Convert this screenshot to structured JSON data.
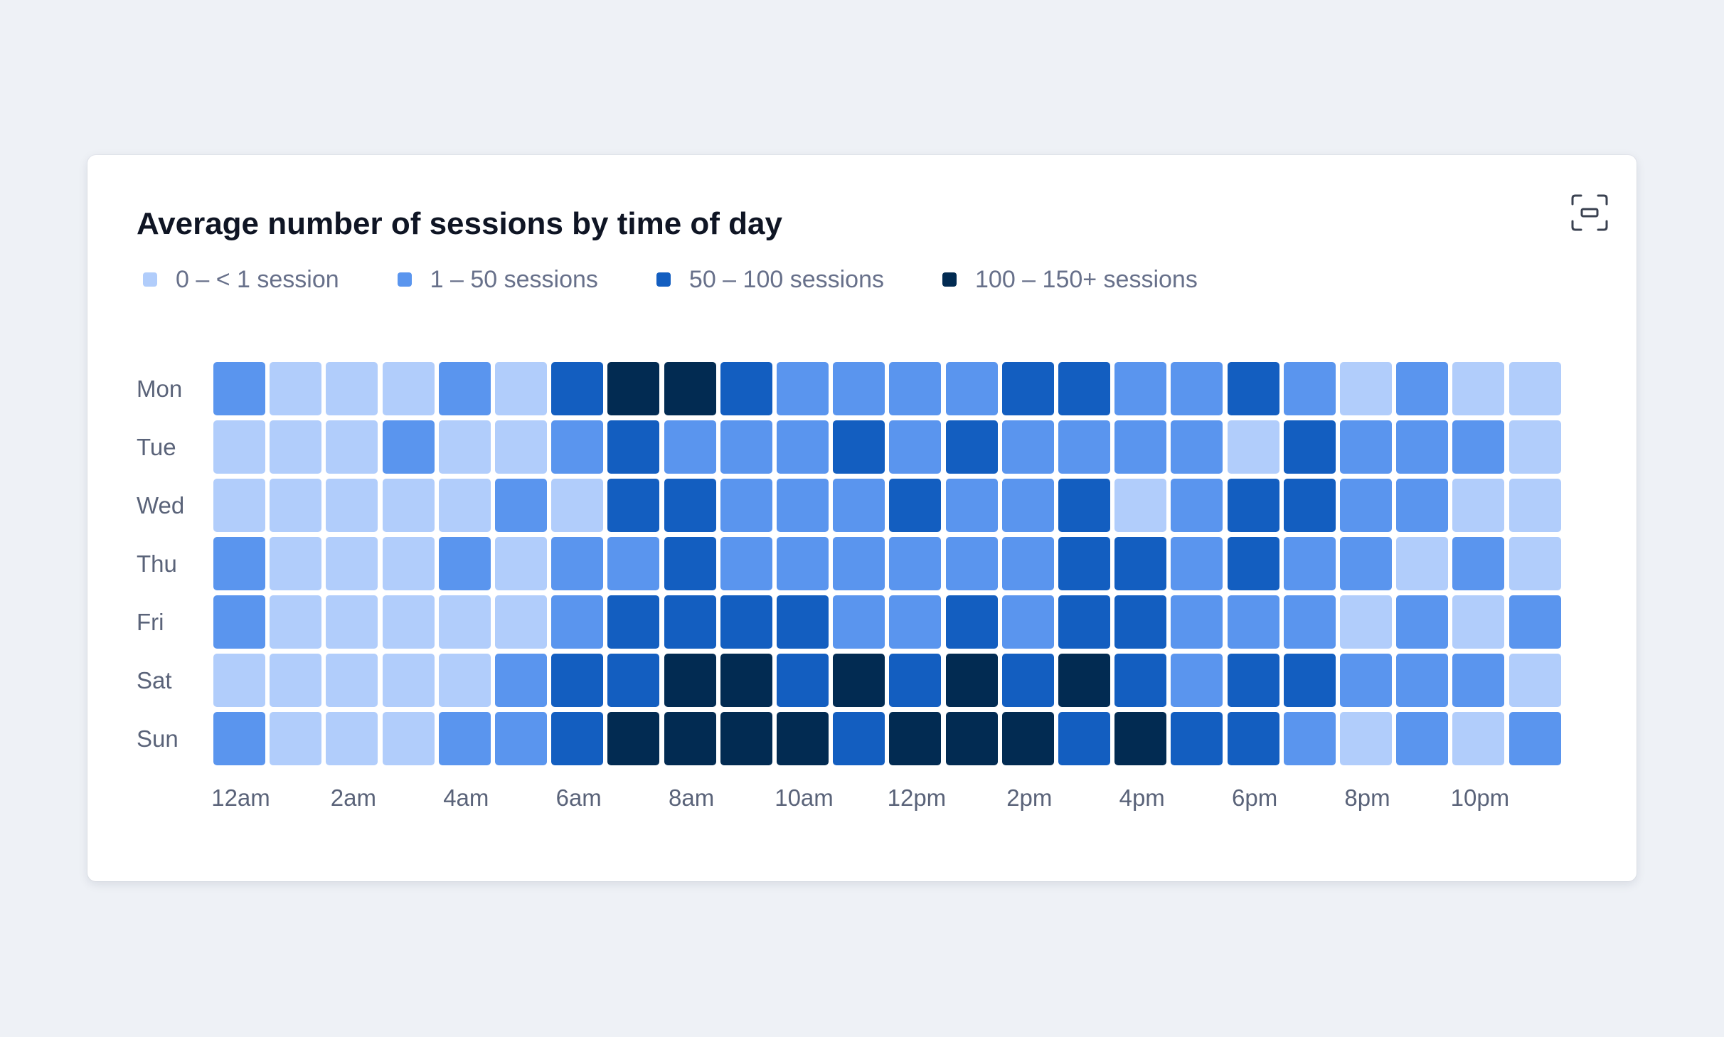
{
  "card": {
    "title": "Average number of sessions by time of day",
    "expand_icon": "expand-icon"
  },
  "chart_data": {
    "type": "heatmap",
    "title": "Average number of sessions by time of day",
    "rows": [
      "Mon",
      "Tue",
      "Wed",
      "Thu",
      "Fri",
      "Sat",
      "Sun"
    ],
    "columns": [
      "12am",
      "1am",
      "2am",
      "3am",
      "4am",
      "5am",
      "6am",
      "7am",
      "8am",
      "9am",
      "10am",
      "11am",
      "12pm",
      "1pm",
      "2pm",
      "3pm",
      "4pm",
      "5pm",
      "6pm",
      "7pm",
      "8pm",
      "9pm",
      "10pm",
      "11pm"
    ],
    "x_tick_labels": [
      {
        "label": "12am",
        "col": 0
      },
      {
        "label": "2am",
        "col": 2
      },
      {
        "label": "4am",
        "col": 4
      },
      {
        "label": "6am",
        "col": 6
      },
      {
        "label": "8am",
        "col": 8
      },
      {
        "label": "10am",
        "col": 10
      },
      {
        "label": "12pm",
        "col": 12
      },
      {
        "label": "2pm",
        "col": 14
      },
      {
        "label": "4pm",
        "col": 16
      },
      {
        "label": "6pm",
        "col": 18
      },
      {
        "label": "8pm",
        "col": 20
      },
      {
        "label": "10pm",
        "col": 22
      }
    ],
    "legend": [
      {
        "label": "0 – < 1 session",
        "level": 0,
        "color": "#b1cdfb"
      },
      {
        "label": "1 – 50 sessions",
        "level": 1,
        "color": "#5a95ee"
      },
      {
        "label": "50 – 100 sessions",
        "level": 2,
        "color": "#135ec0"
      },
      {
        "label": "100 – 150+ sessions",
        "level": 3,
        "color": "#022b52"
      }
    ],
    "legend_placement": "top-left",
    "levels": [
      [
        1,
        0,
        0,
        0,
        1,
        0,
        2,
        3,
        3,
        2,
        1,
        1,
        1,
        1,
        2,
        2,
        1,
        1,
        2,
        1,
        0,
        1,
        0,
        0
      ],
      [
        0,
        0,
        0,
        1,
        0,
        0,
        1,
        2,
        1,
        1,
        1,
        2,
        1,
        2,
        1,
        1,
        1,
        1,
        0,
        2,
        1,
        1,
        1,
        0
      ],
      [
        0,
        0,
        0,
        0,
        0,
        1,
        0,
        2,
        2,
        1,
        1,
        1,
        2,
        1,
        1,
        2,
        0,
        1,
        2,
        2,
        1,
        1,
        0,
        0
      ],
      [
        1,
        0,
        0,
        0,
        1,
        0,
        1,
        1,
        2,
        1,
        1,
        1,
        1,
        1,
        1,
        2,
        2,
        1,
        2,
        1,
        1,
        0,
        1,
        0
      ],
      [
        1,
        0,
        0,
        0,
        0,
        0,
        1,
        2,
        2,
        2,
        2,
        1,
        1,
        2,
        1,
        2,
        2,
        1,
        1,
        1,
        0,
        1,
        0,
        1
      ],
      [
        0,
        0,
        0,
        0,
        0,
        1,
        2,
        2,
        3,
        3,
        2,
        3,
        2,
        3,
        2,
        3,
        2,
        1,
        2,
        2,
        1,
        1,
        1,
        0
      ],
      [
        1,
        0,
        0,
        0,
        1,
        1,
        2,
        3,
        3,
        3,
        3,
        2,
        3,
        3,
        3,
        2,
        3,
        2,
        2,
        1,
        0,
        1,
        0,
        1
      ]
    ]
  }
}
